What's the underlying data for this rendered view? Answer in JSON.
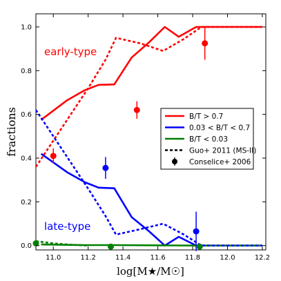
{
  "chart_data": {
    "type": "line",
    "xlabel": "log[M★/M☉]",
    "ylabel": "fractions",
    "xlim": [
      10.9,
      12.22
    ],
    "ylim": [
      -0.02,
      1.06
    ],
    "xticks": [
      "11.0",
      "11.2",
      "11.4",
      "11.6",
      "11.8",
      "12.0",
      "12.2"
    ],
    "yticks": [
      "0.0",
      "0.2",
      "0.4",
      "0.6",
      "0.8",
      "1.0"
    ],
    "grid": false,
    "legend_position": "center-right",
    "annotations": [
      {
        "text": "early-type",
        "color": "#ff0000"
      },
      {
        "text": "late-type",
        "color": "#0000ff"
      }
    ],
    "legend": [
      {
        "label": "B/T > 0.7",
        "color": "#ff0000",
        "style": "solid"
      },
      {
        "label": "0.03 < B/T < 0.7",
        "color": "#0000ff",
        "style": "solid"
      },
      {
        "label": "B/T < 0.03",
        "color": "#008000",
        "style": "solid"
      },
      {
        "label": "Guo+ 2011 (MS-II)",
        "color": "#000000",
        "style": "dashed"
      },
      {
        "label": "Conselice+ 2006",
        "color": "#000000",
        "style": "marker"
      }
    ],
    "series": [
      {
        "name": "B/T > 0.7",
        "color": "#ff0000",
        "style": "solid",
        "x": [
          10.93,
          11.08,
          11.18,
          11.26,
          11.35,
          11.45,
          11.55,
          11.64,
          11.72,
          11.82,
          11.9,
          12.2
        ],
        "y": [
          0.575,
          0.665,
          0.71,
          0.735,
          0.737,
          0.86,
          0.93,
          1.0,
          0.955,
          1.0,
          1.0,
          1.0
        ]
      },
      {
        "name": "0.03 < B/T < 0.7",
        "color": "#0000ff",
        "style": "solid",
        "x": [
          10.93,
          11.08,
          11.18,
          11.26,
          11.35,
          11.45,
          11.55,
          11.64,
          11.72,
          11.82,
          11.9,
          12.2
        ],
        "y": [
          0.42,
          0.335,
          0.29,
          0.265,
          0.262,
          0.13,
          0.065,
          0.0,
          0.04,
          0.0,
          0.0,
          0.0
        ]
      },
      {
        "name": "B/T < 0.03",
        "color": "#008000",
        "style": "solid",
        "x": [
          10.93,
          11.08,
          11.18,
          11.26,
          11.35,
          11.64,
          11.82,
          12.2
        ],
        "y": [
          0.005,
          0.003,
          0.002,
          0.002,
          0.002,
          0.001,
          0.0,
          0.0
        ]
      },
      {
        "name": "Guo+ 2011 (MS-II) early",
        "color": "#ff0000",
        "style": "dashed",
        "x": [
          10.9,
          11.0,
          11.1,
          11.2,
          11.3,
          11.36,
          11.5,
          11.63,
          11.75,
          11.85,
          12.2
        ],
        "y": [
          0.36,
          0.48,
          0.6,
          0.72,
          0.85,
          0.95,
          0.925,
          0.89,
          0.945,
          1.0,
          1.0
        ]
      },
      {
        "name": "Guo+ 2011 (MS-II) late",
        "color": "#0000ff",
        "style": "dashed",
        "x": [
          10.9,
          11.0,
          11.1,
          11.2,
          11.3,
          11.36,
          11.5,
          11.63,
          11.75,
          11.85,
          12.2
        ],
        "y": [
          0.62,
          0.5,
          0.38,
          0.26,
          0.135,
          0.05,
          0.075,
          0.1,
          0.05,
          0.0,
          0.0
        ]
      },
      {
        "name": "Guo+ 2011 (MS-II) B/T<0.03",
        "color": "#008000",
        "style": "dashed",
        "x": [
          10.9,
          11.0,
          11.1,
          11.2
        ],
        "y": [
          0.02,
          0.01,
          0.004,
          0.0
        ]
      }
    ],
    "points": [
      {
        "x": 11.0,
        "y": 0.41,
        "err": 0.035,
        "color": "#ff0000"
      },
      {
        "x": 11.3,
        "y": 0.355,
        "err": 0.05,
        "color": "#0000ff"
      },
      {
        "x": 11.48,
        "y": 0.62,
        "err": 0.04,
        "color": "#ff0000"
      },
      {
        "x": 11.82,
        "y": 0.065,
        "err": 0.09,
        "color": "#0000ff"
      },
      {
        "x": 11.87,
        "y": 0.925,
        "err": 0.075,
        "color": "#ff0000"
      },
      {
        "x": 10.9,
        "y": 0.01,
        "err": 0,
        "color": "#008000"
      },
      {
        "x": 11.33,
        "y": -0.005,
        "err": 0,
        "color": "#008000"
      },
      {
        "x": 11.84,
        "y": -0.005,
        "err": 0,
        "color": "#008000"
      }
    ]
  }
}
